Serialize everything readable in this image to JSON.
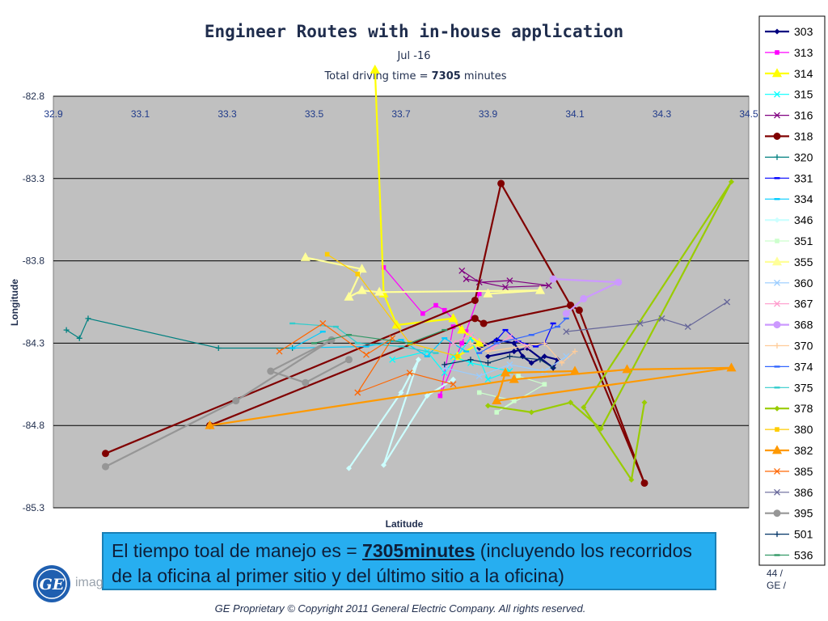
{
  "chart_data": {
    "type": "line",
    "title": "Engineer Routes with in-house application",
    "subtitle": "Jul -16",
    "subtitle2_prefix": "Total driving time = ",
    "subtitle2_value": "7305",
    "subtitle2_suffix": " minutes",
    "xlabel": "Latitude",
    "ylabel": "Longitude",
    "xlim": [
      32.9,
      34.5
    ],
    "ylim": [
      -85.3,
      -82.8
    ],
    "x_ticks": [
      "32.9",
      "33.1",
      "33.3",
      "33.5",
      "33.7",
      "33.9",
      "34.1",
      "34.3",
      "34.5"
    ],
    "y_ticks": [
      "-82.8",
      "-83.3",
      "-83.8",
      "-84.3",
      "-84.8",
      "-85.3"
    ],
    "grid": "horizontal",
    "legend_position": "right",
    "plot_background": "#c0c0c0",
    "series": [
      {
        "name": "303",
        "color": "#000080",
        "marker": "diamond",
        "points": [
          [
            33.88,
            -84.33
          ],
          [
            33.92,
            -84.28
          ],
          [
            33.96,
            -84.3
          ],
          [
            33.98,
            -84.38
          ],
          [
            34.0,
            -84.42
          ],
          [
            34.03,
            -84.38
          ],
          [
            34.06,
            -84.4
          ],
          [
            34.05,
            -84.45
          ],
          [
            33.99,
            -84.33
          ],
          [
            33.96,
            -84.35
          ],
          [
            33.9,
            -84.38
          ]
        ]
      },
      {
        "name": "313",
        "color": "#ff00ff",
        "marker": "square",
        "points": [
          [
            33.66,
            -83.84
          ],
          [
            33.75,
            -84.12
          ],
          [
            33.78,
            -84.07
          ],
          [
            33.8,
            -84.1
          ],
          [
            33.85,
            -84.23
          ],
          [
            33.88,
            -84.0
          ],
          [
            33.84,
            -84.3
          ],
          [
            33.79,
            -84.62
          ],
          [
            33.82,
            -84.2
          ]
        ]
      },
      {
        "name": "314",
        "color": "#ffff00",
        "marker": "triangle",
        "points": [
          [
            33.64,
            -82.64
          ],
          [
            33.66,
            -84.0
          ],
          [
            33.69,
            -84.19
          ],
          [
            33.82,
            -84.15
          ],
          [
            33.84,
            -84.22
          ],
          [
            33.88,
            -84.3
          ],
          [
            33.83,
            -84.38
          ]
        ]
      },
      {
        "name": "315",
        "color": "#00ffff",
        "marker": "x",
        "points": [
          [
            33.68,
            -84.4
          ],
          [
            33.76,
            -84.35
          ],
          [
            33.8,
            -84.48
          ],
          [
            33.86,
            -84.27
          ],
          [
            33.9,
            -84.52
          ],
          [
            33.95,
            -84.47
          ],
          [
            33.86,
            -84.42
          ],
          [
            33.82,
            -84.38
          ]
        ]
      },
      {
        "name": "316",
        "color": "#800080",
        "marker": "x",
        "points": [
          [
            33.84,
            -83.86
          ],
          [
            33.88,
            -83.93
          ],
          [
            33.95,
            -83.92
          ],
          [
            34.04,
            -83.95
          ],
          [
            33.94,
            -83.96
          ],
          [
            33.85,
            -83.91
          ]
        ]
      },
      {
        "name": "318",
        "color": "#800000",
        "marker": "circle",
        "points": [
          [
            33.02,
            -84.97
          ],
          [
            33.87,
            -84.04
          ],
          [
            33.93,
            -83.33
          ],
          [
            34.09,
            -84.07
          ],
          [
            34.11,
            -84.1
          ],
          [
            34.26,
            -85.15
          ],
          [
            34.09,
            -84.07
          ],
          [
            33.89,
            -84.18
          ],
          [
            33.87,
            -84.15
          ],
          [
            33.26,
            -84.8
          ]
        ]
      },
      {
        "name": "320",
        "color": "#008080",
        "marker": "plus",
        "points": [
          [
            32.93,
            -84.22
          ],
          [
            32.96,
            -84.27
          ],
          [
            32.98,
            -84.15
          ],
          [
            33.28,
            -84.33
          ],
          [
            33.45,
            -84.33
          ]
        ]
      },
      {
        "name": "331",
        "color": "#0000ff",
        "marker": "dash",
        "points": [
          [
            33.92,
            -84.28
          ],
          [
            33.94,
            -84.22
          ],
          [
            33.97,
            -84.29
          ],
          [
            34.01,
            -84.32
          ],
          [
            34.03,
            -84.3
          ],
          [
            34.05,
            -84.18
          ]
        ]
      },
      {
        "name": "334",
        "color": "#00ccff",
        "marker": "dash",
        "points": [
          [
            33.52,
            -84.23
          ],
          [
            33.45,
            -84.33
          ],
          [
            33.62,
            -84.32
          ],
          [
            33.7,
            -84.28
          ],
          [
            33.76,
            -84.38
          ],
          [
            33.8,
            -84.27
          ],
          [
            33.85,
            -84.35
          ]
        ]
      },
      {
        "name": "346",
        "color": "#ccffff",
        "marker": "diamond",
        "points": [
          [
            33.58,
            -85.06
          ],
          [
            33.7,
            -84.6
          ],
          [
            33.74,
            -84.4
          ],
          [
            33.66,
            -85.04
          ],
          [
            33.76,
            -84.62
          ],
          [
            33.82,
            -84.52
          ]
        ]
      },
      {
        "name": "351",
        "color": "#ccffcc",
        "marker": "square",
        "points": [
          [
            33.88,
            -84.6
          ],
          [
            33.96,
            -84.65
          ],
          [
            33.92,
            -84.72
          ],
          [
            34.03,
            -84.55
          ],
          [
            33.97,
            -84.5
          ]
        ]
      },
      {
        "name": "355",
        "color": "#ffff99",
        "marker": "triangle",
        "points": [
          [
            33.48,
            -83.78
          ],
          [
            33.61,
            -83.85
          ],
          [
            33.58,
            -84.02
          ],
          [
            33.61,
            -83.98
          ],
          [
            33.65,
            -83.99
          ],
          [
            34.02,
            -83.98
          ],
          [
            33.9,
            -84.0
          ]
        ]
      },
      {
        "name": "360",
        "color": "#99ccff",
        "marker": "x",
        "points": [
          [
            33.8,
            -84.45
          ],
          [
            33.88,
            -84.5
          ],
          [
            33.95,
            -84.43
          ],
          [
            34.03,
            -84.47
          ],
          [
            34.08,
            -84.38
          ]
        ]
      },
      {
        "name": "367",
        "color": "#ff99cc",
        "marker": "x",
        "points": [
          [
            33.82,
            -84.3
          ],
          [
            33.86,
            -84.25
          ],
          [
            33.91,
            -84.33
          ],
          [
            33.95,
            -84.26
          ],
          [
            33.99,
            -84.32
          ]
        ]
      },
      {
        "name": "368",
        "color": "#cc99ff",
        "marker": "circle",
        "points": [
          [
            34.05,
            -83.91
          ],
          [
            34.2,
            -83.93
          ],
          [
            34.12,
            -84.03
          ],
          [
            34.08,
            -84.12
          ]
        ]
      },
      {
        "name": "370",
        "color": "#ffcc99",
        "marker": "plus",
        "points": [
          [
            33.86,
            -84.3
          ],
          [
            33.9,
            -84.35
          ],
          [
            34.03,
            -84.3
          ],
          [
            34.07,
            -84.42
          ],
          [
            34.1,
            -84.35
          ]
        ]
      },
      {
        "name": "374",
        "color": "#3366ff",
        "marker": "dash",
        "points": [
          [
            33.88,
            -84.36
          ],
          [
            33.92,
            -84.3
          ],
          [
            34.0,
            -84.25
          ],
          [
            34.06,
            -84.2
          ],
          [
            34.08,
            -84.15
          ]
        ]
      },
      {
        "name": "375",
        "color": "#33cccc",
        "marker": "dash",
        "points": [
          [
            33.45,
            -84.18
          ],
          [
            33.55,
            -84.2
          ],
          [
            33.6,
            -84.3
          ],
          [
            33.7,
            -84.32
          ],
          [
            33.78,
            -84.36
          ]
        ]
      },
      {
        "name": "378",
        "color": "#99cc00",
        "marker": "diamond",
        "points": [
          [
            33.9,
            -84.68
          ],
          [
            34.0,
            -84.72
          ],
          [
            34.09,
            -84.66
          ],
          [
            34.16,
            -84.82
          ],
          [
            34.46,
            -83.32
          ],
          [
            34.12,
            -84.69
          ],
          [
            34.23,
            -85.13
          ],
          [
            34.26,
            -84.66
          ]
        ]
      },
      {
        "name": "380",
        "color": "#ffcc00",
        "marker": "square",
        "points": [
          [
            33.53,
            -83.76
          ],
          [
            33.6,
            -83.88
          ],
          [
            33.72,
            -84.3
          ],
          [
            33.83,
            -84.38
          ]
        ]
      },
      {
        "name": "382",
        "color": "#ff9900",
        "marker": "triangle",
        "points": [
          [
            33.26,
            -84.8
          ],
          [
            33.96,
            -84.52
          ],
          [
            34.22,
            -84.46
          ],
          [
            34.46,
            -84.45
          ],
          [
            33.92,
            -84.65
          ],
          [
            33.94,
            -84.48
          ],
          [
            34.1,
            -84.47
          ]
        ]
      },
      {
        "name": "385",
        "color": "#ff6600",
        "marker": "x",
        "points": [
          [
            33.42,
            -84.35
          ],
          [
            33.52,
            -84.18
          ],
          [
            33.62,
            -84.37
          ],
          [
            33.68,
            -84.27
          ],
          [
            33.6,
            -84.6
          ],
          [
            33.72,
            -84.48
          ],
          [
            33.82,
            -84.55
          ]
        ]
      },
      {
        "name": "386",
        "color": "#666699",
        "marker": "x",
        "points": [
          [
            34.08,
            -84.23
          ],
          [
            34.25,
            -84.18
          ],
          [
            34.3,
            -84.15
          ],
          [
            34.36,
            -84.2
          ],
          [
            34.45,
            -84.05
          ]
        ]
      },
      {
        "name": "395",
        "color": "#969696",
        "marker": "circle",
        "points": [
          [
            33.02,
            -85.05
          ],
          [
            33.32,
            -84.65
          ],
          [
            33.54,
            -84.28
          ],
          [
            33.4,
            -84.47
          ],
          [
            33.48,
            -84.54
          ],
          [
            33.58,
            -84.4
          ]
        ]
      },
      {
        "name": "501",
        "color": "#003366",
        "marker": "plus",
        "points": [
          [
            33.8,
            -84.43
          ],
          [
            33.86,
            -84.4
          ],
          [
            33.9,
            -84.42
          ],
          [
            33.95,
            -84.38
          ],
          [
            34.02,
            -84.4
          ],
          [
            34.05,
            -84.45
          ]
        ]
      },
      {
        "name": "536",
        "color": "#339966",
        "marker": "dash",
        "points": [
          [
            33.5,
            -84.3
          ],
          [
            33.58,
            -84.25
          ],
          [
            33.72,
            -84.3
          ],
          [
            33.8,
            -84.22
          ]
        ]
      }
    ]
  },
  "callout": {
    "prefix": "El tiempo toal de manejo es = ",
    "emphasis": "7305minutes",
    "suffix": " (incluyendo los recorridos de la oficina al primer sitio y del último sitio a la oficina)"
  },
  "footer": {
    "logo_text": "GE",
    "imag_text": "imag",
    "page_num_line1": "44 /",
    "page_num_line2": "GE  /",
    "copyright": "GE Proprietary © Copyright 2011 General Electric Company. All rights reserved."
  }
}
